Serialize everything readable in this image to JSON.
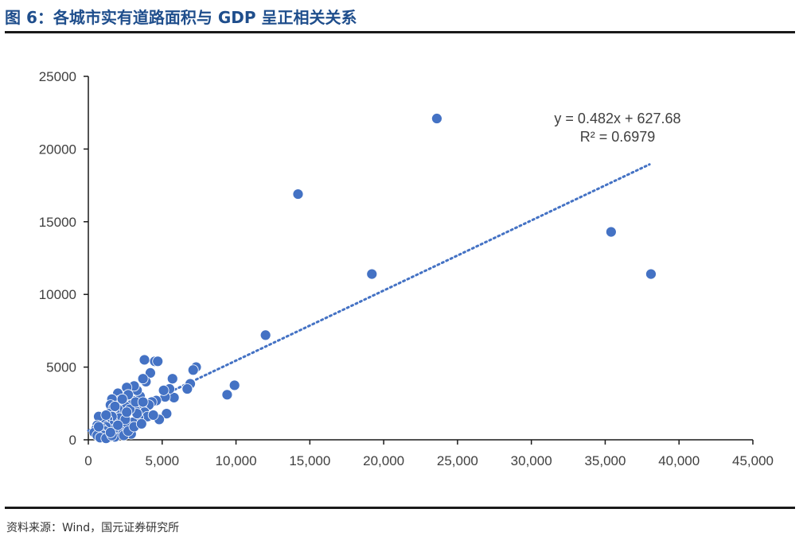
{
  "header": {
    "title": "图 6：各城市实有道路面积与 GDP 呈正相关关系"
  },
  "footer": {
    "source": "资料来源：Wind，国元证券研究所"
  },
  "chart_data": {
    "type": "scatter",
    "title": "各城市实有道路面积与 GDP 呈正相关关系",
    "xlabel": "",
    "ylabel": "",
    "xlim": [
      0,
      45000
    ],
    "ylim": [
      0,
      25000
    ],
    "x_ticks": [
      0,
      5000,
      10000,
      15000,
      20000,
      25000,
      30000,
      35000,
      40000,
      45000
    ],
    "x_tick_labels": [
      "0",
      "5,000",
      "10,000",
      "15,000",
      "20,000",
      "25,000",
      "30,000",
      "35,000",
      "40,000",
      "45,000"
    ],
    "y_ticks": [
      0,
      5000,
      10000,
      15000,
      20000,
      25000
    ],
    "y_tick_labels": [
      "0",
      "5000",
      "10000",
      "15000",
      "20000",
      "25000"
    ],
    "grid": false,
    "legend": "none",
    "point_color": "#4472c4",
    "trendline": {
      "type": "linear",
      "slope": 0.482,
      "intercept": 627.68,
      "x_range": [
        0,
        38000
      ],
      "equation": "y = 0.482x  + 627.68",
      "r_squared": "R² = 0.6979"
    },
    "points": [
      [
        23600,
        22100
      ],
      [
        14200,
        16900
      ],
      [
        35400,
        14300
      ],
      [
        19200,
        11400
      ],
      [
        38100,
        11400
      ],
      [
        12000,
        7200
      ],
      [
        9900,
        3750
      ],
      [
        9400,
        3100
      ],
      [
        7300,
        5000
      ],
      [
        7100,
        4800
      ],
      [
        6900,
        3850
      ],
      [
        6700,
        3500
      ],
      [
        5800,
        2900
      ],
      [
        5700,
        4200
      ],
      [
        5500,
        3500
      ],
      [
        5200,
        2950
      ],
      [
        5100,
        3400
      ],
      [
        5300,
        1800
      ],
      [
        4800,
        1400
      ],
      [
        4600,
        2700
      ],
      [
        4300,
        2600
      ],
      [
        4100,
        2400
      ],
      [
        4500,
        5400
      ],
      [
        4700,
        5400
      ],
      [
        3800,
        5500
      ],
      [
        4200,
        4600
      ],
      [
        3900,
        4000
      ],
      [
        3700,
        4200
      ],
      [
        3500,
        3000
      ],
      [
        3600,
        2200
      ],
      [
        3800,
        1900
      ],
      [
        4000,
        1600
      ],
      [
        3300,
        3400
      ],
      [
        3100,
        3700
      ],
      [
        3000,
        2700
      ],
      [
        2900,
        2400
      ],
      [
        3200,
        2000
      ],
      [
        3400,
        1500
      ],
      [
        3000,
        1200
      ],
      [
        2800,
        800
      ],
      [
        2600,
        3600
      ],
      [
        2700,
        3100
      ],
      [
        2500,
        2300
      ],
      [
        2400,
        1800
      ],
      [
        2300,
        1300
      ],
      [
        2600,
        1000
      ],
      [
        2200,
        600
      ],
      [
        2900,
        400
      ],
      [
        2000,
        3200
      ],
      [
        2100,
        2700
      ],
      [
        1900,
        2600
      ],
      [
        2000,
        2100
      ],
      [
        1800,
        1900
      ],
      [
        2100,
        1500
      ],
      [
        1700,
        1200
      ],
      [
        1900,
        900
      ],
      [
        2200,
        400
      ],
      [
        1800,
        200
      ],
      [
        1600,
        2800
      ],
      [
        1500,
        2400
      ],
      [
        1700,
        2200
      ],
      [
        1400,
        1800
      ],
      [
        1600,
        1600
      ],
      [
        1300,
        1400
      ],
      [
        1500,
        1000
      ],
      [
        1700,
        700
      ],
      [
        1300,
        500
      ],
      [
        1400,
        200
      ],
      [
        1100,
        1300
      ],
      [
        1000,
        1100
      ],
      [
        1200,
        900
      ],
      [
        900,
        800
      ],
      [
        1100,
        600
      ],
      [
        800,
        500
      ],
      [
        1000,
        300
      ],
      [
        700,
        1600
      ],
      [
        600,
        1000
      ],
      [
        500,
        700
      ],
      [
        400,
        500
      ],
      [
        600,
        300
      ],
      [
        800,
        150
      ],
      [
        1200,
        100
      ],
      [
        1600,
        300
      ],
      [
        2400,
        300
      ],
      [
        2700,
        600
      ],
      [
        3100,
        900
      ],
      [
        3300,
        1800
      ],
      [
        3600,
        1100
      ],
      [
        2300,
        2800
      ],
      [
        2800,
        2100
      ],
      [
        2500,
        1400
      ],
      [
        2000,
        1000
      ],
      [
        1500,
        500
      ],
      [
        1200,
        1700
      ],
      [
        2600,
        1900
      ],
      [
        3200,
        2600
      ],
      [
        3700,
        2600
      ],
      [
        4400,
        1700
      ],
      [
        700,
        900
      ],
      [
        1800,
        2300
      ]
    ]
  }
}
